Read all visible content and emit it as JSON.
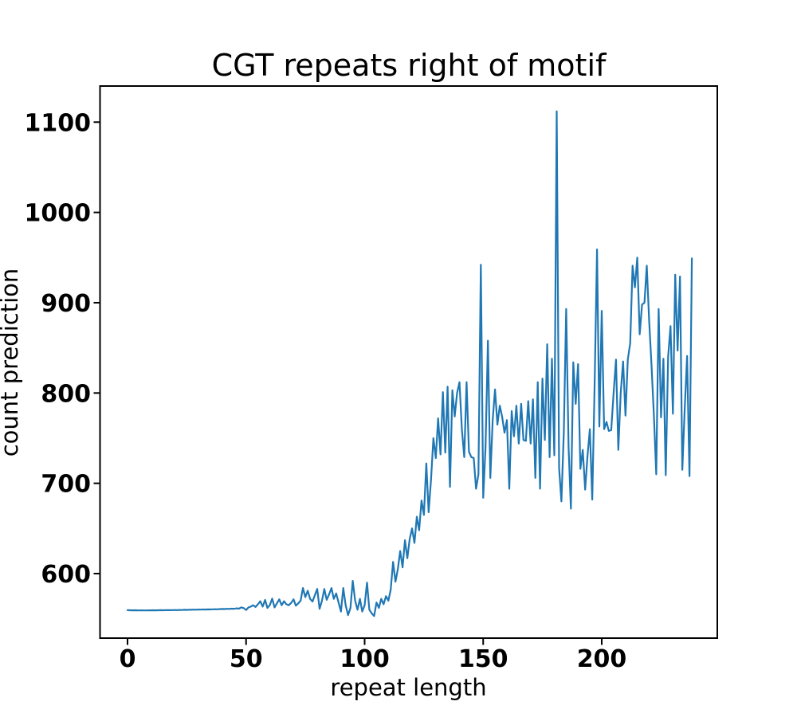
{
  "chart_data": {
    "type": "line",
    "title": "CGT repeats right of motif",
    "xlabel": "repeat length",
    "ylabel": "count prediction",
    "x_ticks": [
      0,
      50,
      100,
      150,
      200
    ],
    "y_ticks": [
      600,
      700,
      800,
      900,
      1000,
      1100
    ],
    "xlim": [
      -11.6,
      248.7
    ],
    "ylim": [
      528,
      1139
    ],
    "grid": false,
    "legend": false,
    "background_color": "#ffffff",
    "series": [
      {
        "name": "count prediction",
        "color": "#1f77b4",
        "x_start": 0,
        "x_step": 1,
        "y": [
          559.5,
          559.4,
          559.3,
          559.4,
          559.3,
          559.2,
          559.3,
          559.2,
          559.2,
          559.3,
          559.3,
          559.4,
          559.3,
          559.4,
          559.5,
          559.4,
          559.5,
          559.6,
          559.5,
          559.6,
          559.7,
          559.6,
          559.8,
          559.7,
          559.9,
          559.8,
          560,
          559.9,
          560.1,
          560,
          560.2,
          560.1,
          560.3,
          560.2,
          560.4,
          560.3,
          560.5,
          560.6,
          560.5,
          560.7,
          560.8,
          560.7,
          561,
          560.9,
          561.2,
          561,
          561.5,
          561.2,
          562.6,
          561.8,
          559.7,
          562.5,
          563.5,
          565,
          563,
          566,
          569.4,
          563.5,
          570.9,
          562,
          565,
          572.3,
          562.6,
          567,
          571.5,
          565,
          569.4,
          566,
          565,
          567.5,
          571.5,
          564.5,
          567,
          570,
          584,
          574,
          581,
          572,
          569,
          576,
          583,
          561,
          570,
          583,
          571,
          577,
          584,
          572,
          578,
          568,
          558,
          584,
          565,
          554,
          562,
          592,
          570,
          560,
          572,
          558,
          565,
          590,
          560,
          556,
          553,
          568,
          562,
          572,
          566,
          575,
          570,
          582,
          613,
          591,
          605,
          625,
          607,
          637,
          617,
          638,
          650,
          634,
          663,
          648,
          681,
          665,
          722,
          668,
          704,
          750,
          728,
          772,
          732,
          801,
          734,
          807,
          696,
          803,
          774,
          800,
          812,
          760,
          729,
          812,
          735,
          729,
          728,
          694,
          710,
          942,
          684,
          740,
          858,
          706,
          770,
          804,
          765,
          786,
          774,
          756,
          770,
          694,
          780,
          752,
          786,
          744,
          788,
          748,
          747,
          791,
          744,
          793,
          706,
          812,
          694,
          816,
          748,
          854,
          729,
          838,
          731,
          1112,
          717,
          680,
          756,
          893,
          740,
          672,
          834,
          788,
          832,
          716,
          737,
          693,
          730,
          760,
          682,
          810,
          959,
          763,
          891,
          760,
          768,
          758,
          759,
          800,
          837,
          737,
          800,
          835,
          775,
          837,
          855,
          941,
          917,
          950,
          865,
          898,
          900,
          941,
          880,
          830,
          774,
          710,
          893,
          773,
          838,
          709,
          840,
          874,
          777,
          931,
          847,
          929,
          715,
          782,
          841,
          708,
          949
        ]
      }
    ]
  }
}
